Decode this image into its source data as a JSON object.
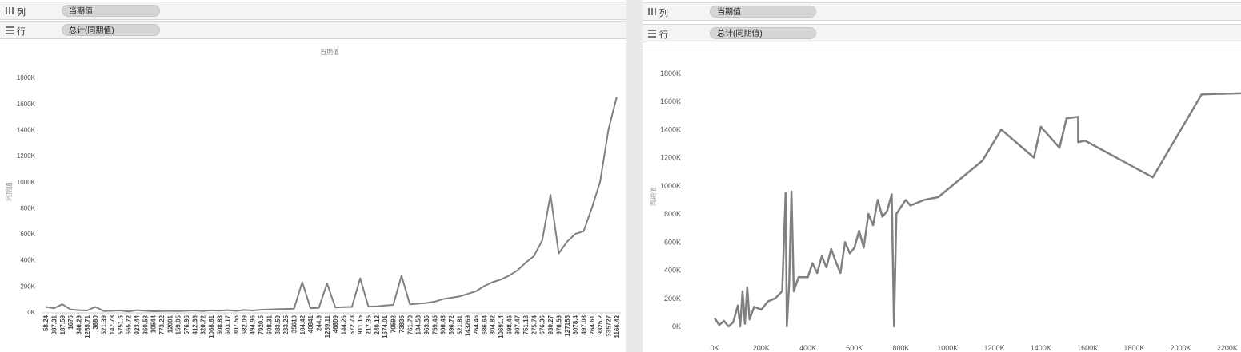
{
  "colors": {
    "line": "#808080",
    "axis_text": "#555555",
    "pill_bg": "#d5d5d5",
    "shelf_bg": "#f4f4f4"
  },
  "icons": {
    "columns": "columns-grid-icon",
    "rows": "rows-grid-icon"
  },
  "left_panel": {
    "columns_shelf": {
      "label": "列",
      "pill": "当期值"
    },
    "rows_shelf": {
      "label": "行",
      "pill": "总计(同期值)"
    },
    "title": "当期值",
    "ylabel": "同期值"
  },
  "right_panel": {
    "columns_shelf": {
      "label": "列",
      "pill": "当期值"
    },
    "rows_shelf": {
      "label": "行",
      "pill": "总计(同期值)"
    },
    "ylabel": "同期值"
  },
  "chart_data": [
    {
      "type": "line",
      "title": "当期值",
      "xlabel": "",
      "ylabel": "同期值",
      "ylim": [
        0,
        1850000
      ],
      "yticks": [
        0,
        200000,
        400000,
        600000,
        800000,
        1000000,
        1200000,
        1400000,
        1600000,
        1800000
      ],
      "ytick_labels": [
        "0K",
        "200K",
        "400K",
        "600K",
        "800K",
        "1000K",
        "1200K",
        "1400K",
        "1600K",
        "1800K"
      ],
      "x_categories": [
        "58.24",
        "387.31",
        "187.59",
        "1676",
        "346.29",
        "1255.71",
        "3880",
        "521.39",
        "147.78",
        "5751.6",
        "555.72",
        "923.44",
        "360.53",
        "10544",
        "773.22",
        "12001",
        "159.05",
        "576.96",
        "412.36",
        "326.72",
        "1068.81",
        "508.83",
        "603.17",
        "807.56",
        "582.09",
        "494.96",
        "7920.5",
        "608.31",
        "383.59",
        "233.25",
        "35610",
        "104.42",
        "40841",
        "244.9",
        "1259.11",
        "46809",
        "144.26",
        "572.73",
        "911.15",
        "217.35",
        "240.12",
        "1674.01",
        "70592",
        "73835",
        "761.79",
        "134.58",
        "963.36",
        "759.45",
        "606.43",
        "696.72",
        "521.81",
        "143269",
        "264.46",
        "686.64",
        "804.82",
        "10691.4",
        "698.46",
        "907.47",
        "751.13",
        "275.74",
        "676.36",
        "930.27",
        "976.59",
        "127155",
        "6078.4",
        "497.08",
        "264.61",
        "9325.2",
        "335727",
        "1166.42"
      ],
      "grid": false,
      "series": [
        {
          "values": [
            40000,
            30000,
            60000,
            20000,
            15000,
            12000,
            40000,
            8000,
            10000,
            12000,
            5000,
            15000,
            10000,
            6000,
            8000,
            9000,
            8000,
            10000,
            12000,
            8000,
            13000,
            11000,
            15000,
            9000,
            16000,
            12000,
            18000,
            20000,
            22000,
            24000,
            26000,
            230000,
            30000,
            32000,
            220000,
            35000,
            38000,
            40000,
            260000,
            42000,
            45000,
            50000,
            55000,
            280000,
            60000,
            65000,
            70000,
            80000,
            100000,
            110000,
            120000,
            140000,
            160000,
            200000,
            230000,
            250000,
            280000,
            320000,
            380000,
            430000,
            550000,
            900000,
            450000,
            540000,
            600000,
            620000,
            800000,
            1000000,
            1400000,
            1650000
          ]
        }
      ]
    },
    {
      "type": "line",
      "title": "",
      "xlabel": "",
      "ylabel": "同期值",
      "xlim": [
        0,
        2300000
      ],
      "ylim": [
        0,
        1850000
      ],
      "xticks": [
        0,
        200000,
        400000,
        600000,
        800000,
        1000000,
        1200000,
        1400000,
        1600000,
        1800000,
        2000000,
        2200000
      ],
      "xtick_labels": [
        "0K",
        "200K",
        "400K",
        "600K",
        "800K",
        "1000K",
        "1200K",
        "1400K",
        "1600K",
        "1800K",
        "2000K",
        "2200K"
      ],
      "yticks": [
        0,
        200000,
        400000,
        600000,
        800000,
        1000000,
        1200000,
        1400000,
        1600000,
        1800000
      ],
      "ytick_labels": [
        "0K",
        "200K",
        "400K",
        "600K",
        "800K",
        "1000K",
        "1200K",
        "1400K",
        "1600K",
        "1800K"
      ],
      "grid": false,
      "series": [
        {
          "points": [
            [
              0,
              60000
            ],
            [
              20000,
              10000
            ],
            [
              40000,
              40000
            ],
            [
              60000,
              0
            ],
            [
              80000,
              30000
            ],
            [
              100000,
              150000
            ],
            [
              110000,
              0
            ],
            [
              120000,
              250000
            ],
            [
              130000,
              20000
            ],
            [
              140000,
              280000
            ],
            [
              150000,
              50000
            ],
            [
              170000,
              140000
            ],
            [
              200000,
              120000
            ],
            [
              230000,
              180000
            ],
            [
              260000,
              200000
            ],
            [
              290000,
              250000
            ],
            [
              305000,
              950000
            ],
            [
              310000,
              0
            ],
            [
              320000,
              300000
            ],
            [
              330000,
              960000
            ],
            [
              340000,
              250000
            ],
            [
              360000,
              350000
            ],
            [
              400000,
              350000
            ],
            [
              420000,
              450000
            ],
            [
              440000,
              380000
            ],
            [
              460000,
              500000
            ],
            [
              480000,
              420000
            ],
            [
              500000,
              550000
            ],
            [
              520000,
              460000
            ],
            [
              540000,
              380000
            ],
            [
              560000,
              600000
            ],
            [
              580000,
              520000
            ],
            [
              600000,
              560000
            ],
            [
              620000,
              680000
            ],
            [
              640000,
              560000
            ],
            [
              660000,
              800000
            ],
            [
              680000,
              720000
            ],
            [
              700000,
              900000
            ],
            [
              720000,
              780000
            ],
            [
              740000,
              820000
            ],
            [
              760000,
              940000
            ],
            [
              770000,
              0
            ],
            [
              780000,
              800000
            ],
            [
              800000,
              850000
            ],
            [
              820000,
              900000
            ],
            [
              840000,
              860000
            ],
            [
              870000,
              880000
            ],
            [
              900000,
              900000
            ],
            [
              960000,
              920000
            ],
            [
              1150000,
              1180000
            ],
            [
              1230000,
              1400000
            ],
            [
              1370000,
              1200000
            ],
            [
              1400000,
              1420000
            ],
            [
              1480000,
              1270000
            ],
            [
              1510000,
              1480000
            ],
            [
              1560000,
              1490000
            ],
            [
              1560000,
              1310000
            ],
            [
              1590000,
              1320000
            ],
            [
              1880000,
              1060000
            ],
            [
              2090000,
              1650000
            ],
            [
              2300000,
              1660000
            ]
          ]
        }
      ]
    }
  ]
}
